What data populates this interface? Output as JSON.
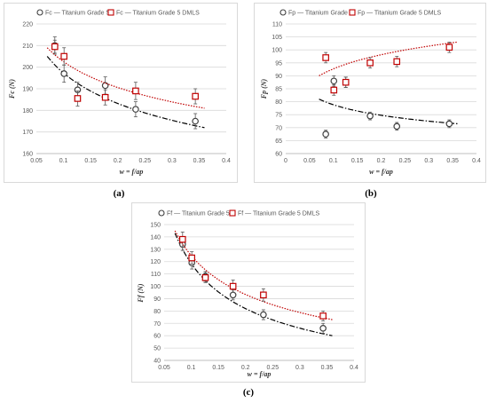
{
  "figure": {
    "panels": [
      {
        "caption": "(a)"
      },
      {
        "caption": "(b)"
      },
      {
        "caption": "(c)"
      }
    ]
  },
  "chart_data": [
    {
      "type": "scatter",
      "xlabel": "w = f/ap",
      "ylabel": "Fc (N)",
      "xlim": [
        0.05,
        0.4
      ],
      "ylim": [
        160,
        220
      ],
      "xticks": [
        "0.05",
        "0.1",
        "0.15",
        "0.2",
        "0.25",
        "0.3",
        "0.35",
        "0.4"
      ],
      "yticks": [
        "160",
        "170",
        "180",
        "190",
        "200",
        "210",
        "220"
      ],
      "grid": "horizontal",
      "legend": "top",
      "series": [
        {
          "name": "Fc — Titanium Grade 5",
          "marker": "circle",
          "color": "#404040",
          "x": [
            0.084,
            0.101,
            0.126,
            0.177,
            0.233,
            0.343
          ],
          "y": [
            210,
            197,
            189.5,
            191.5,
            180.5,
            175
          ],
          "err": [
            4,
            4,
            3.5,
            4,
            3.5,
            3.5
          ],
          "trend": {
            "style": "dash-dot",
            "color": "#000000",
            "x": [
              0.07,
              0.36
            ],
            "y": [
              205,
              172
            ]
          }
        },
        {
          "name": "Fc — Titanium Grade 5 DMLS",
          "marker": "square",
          "color": "#c00000",
          "x": [
            0.084,
            0.101,
            0.126,
            0.177,
            0.233,
            0.343
          ],
          "y": [
            209.5,
            205,
            185.5,
            186,
            189,
            186.5
          ],
          "err": [
            3,
            4,
            3.5,
            3.5,
            4,
            3.5
          ],
          "trend": {
            "style": "dotted",
            "color": "#c00000",
            "x": [
              0.07,
              0.36
            ],
            "y": [
              209,
              181
            ]
          }
        }
      ]
    },
    {
      "type": "scatter",
      "xlabel": "w = f/ap",
      "ylabel": "Fp (N)",
      "xlim": [
        0,
        0.4
      ],
      "ylim": [
        60,
        110
      ],
      "xticks": [
        "0",
        "0.05",
        "0.1",
        "0.15",
        "0.2",
        "0.25",
        "0.3",
        "0.35",
        "0.4"
      ],
      "yticks": [
        "60",
        "65",
        "70",
        "75",
        "80",
        "85",
        "90",
        "95",
        "100",
        "105",
        "110"
      ],
      "grid": "horizontal",
      "legend": "top",
      "series": [
        {
          "name": "Fp — Titanium Grade 5",
          "marker": "circle",
          "color": "#404040",
          "x": [
            0.084,
            0.101,
            0.126,
            0.177,
            0.233,
            0.343
          ],
          "y": [
            67.5,
            88,
            87.5,
            74.5,
            70.5,
            71.5
          ],
          "err": [
            1.5,
            2,
            2,
            1.5,
            1.5,
            1.5
          ],
          "trend": {
            "style": "dash-dot",
            "color": "#000000",
            "x": [
              0.07,
              0.36
            ],
            "y": [
              81,
              71.5
            ]
          }
        },
        {
          "name": "Fp — Titanium Grade 5 DMLS",
          "marker": "square",
          "color": "#c00000",
          "x": [
            0.084,
            0.101,
            0.126,
            0.177,
            0.233,
            0.343
          ],
          "y": [
            97,
            84.5,
            87.5,
            95,
            95.5,
            101
          ],
          "err": [
            2,
            2,
            2,
            2,
            2,
            2
          ],
          "trend": {
            "style": "dotted",
            "color": "#c00000",
            "x": [
              0.07,
              0.36
            ],
            "y": [
              90,
              103
            ]
          }
        }
      ]
    },
    {
      "type": "scatter",
      "xlabel": "w = f/ap",
      "ylabel": "Ff (N)",
      "xlim": [
        0.05,
        0.4
      ],
      "ylim": [
        40,
        150
      ],
      "xticks": [
        "0.05",
        "0.1",
        "0.15",
        "0.2",
        "0.25",
        "0.3",
        "0.35",
        "0.4"
      ],
      "yticks": [
        "40",
        "50",
        "60",
        "70",
        "80",
        "90",
        "100",
        "110",
        "120",
        "130",
        "140",
        "150"
      ],
      "grid": "horizontal",
      "legend": "top",
      "series": [
        {
          "name": "Ff — Titanium Grade 5",
          "marker": "circle",
          "color": "#404040",
          "x": [
            0.084,
            0.101,
            0.126,
            0.177,
            0.233,
            0.343
          ],
          "y": [
            134,
            119,
            108,
            93,
            77,
            66
          ],
          "err": [
            5,
            5,
            4,
            4,
            4,
            4
          ],
          "trend": {
            "style": "dash-dot",
            "color": "#000000",
            "x": [
              0.07,
              0.36
            ],
            "y": [
              143,
              60
            ]
          }
        },
        {
          "name": "Ff — Titanium Grade 5 DMLS",
          "marker": "square",
          "color": "#c00000",
          "x": [
            0.084,
            0.101,
            0.126,
            0.177,
            0.233,
            0.343
          ],
          "y": [
            138,
            123,
            107,
            100,
            93,
            76
          ],
          "err": [
            6,
            5,
            4,
            5,
            5,
            4
          ],
          "trend": {
            "style": "dotted",
            "color": "#c00000",
            "x": [
              0.07,
              0.36
            ],
            "y": [
              145,
              73
            ]
          }
        }
      ]
    }
  ]
}
